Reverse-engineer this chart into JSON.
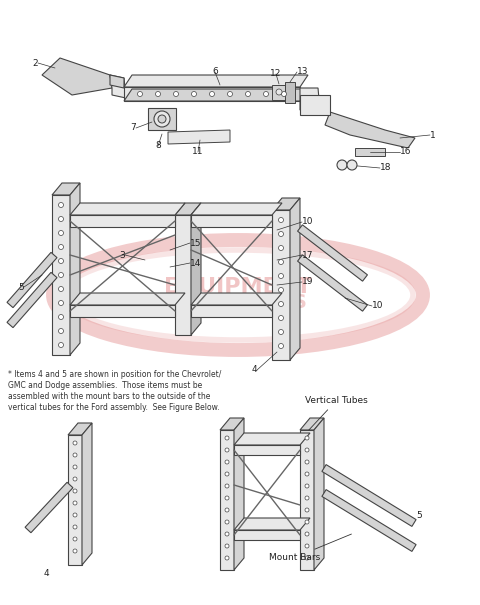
{
  "background_color": "#ffffff",
  "watermark_color": "#e08080",
  "watermark_alpha": 0.4,
  "footnote_line1": "* Items 4 and 5 are shown in position for the Chevrolet/",
  "footnote_line2": "GMC and Dodge assemblies.  Those items must be",
  "footnote_line3": "assembled with the mount bars to the outside of the",
  "footnote_line4": "vertical tubes for the Ford assembly.  See Figure Below.",
  "label_vertical": "Vertical Tubes",
  "label_mount": "Mount Bars",
  "lc": "#444444",
  "fc_light": "#e8e8e8",
  "fc_mid": "#d4d4d4",
  "fc_dark": "#c0c0c0"
}
